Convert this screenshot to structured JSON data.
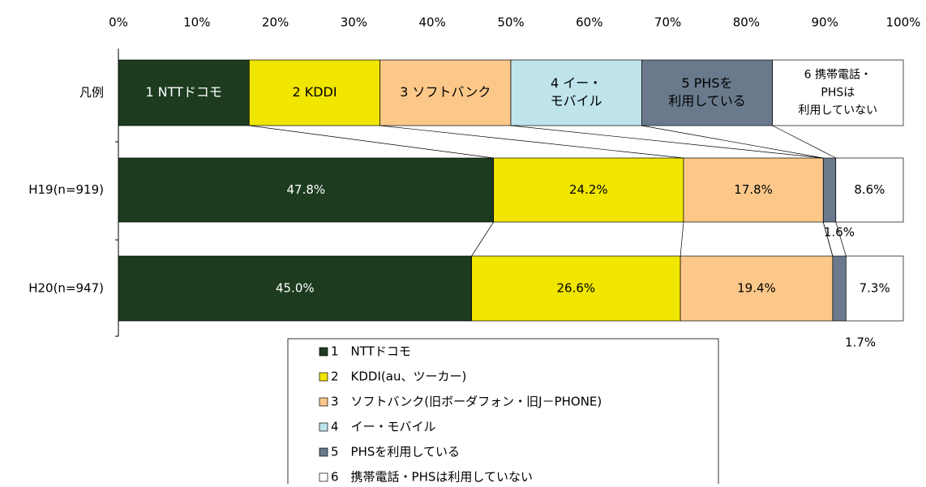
{
  "chart_data": {
    "type": "stacked_bar_horizontal",
    "categories": [
      "H19(n=919)",
      "H20(n=947)"
    ],
    "legend_row": {
      "label": "凡例",
      "segments": [
        [
          "1 NTTドコモ"
        ],
        [
          "2 KDDI"
        ],
        [
          "3 ソフトバンク"
        ],
        [
          "4 イー・",
          "モバイル"
        ],
        [
          "5 PHSを",
          "利用している"
        ],
        [
          "6 携帯電話・",
          "PHSは",
          "利用していない"
        ]
      ]
    },
    "series": [
      {
        "name": "1　NTTドコモ",
        "color": "#1c3b1f",
        "values": [
          47.8,
          45.0
        ],
        "value_labels": [
          "47.8%",
          "45.0%"
        ]
      },
      {
        "name": "2　KDDI(au、ツーカー)",
        "color": "#f0e600",
        "values": [
          24.2,
          26.6
        ],
        "value_labels": [
          "24.2%",
          "26.6%"
        ]
      },
      {
        "name": "3　ソフトバンク(旧ボーダフォン・旧J－PHONE)",
        "color": "#fcc88a",
        "values": [
          17.8,
          19.4
        ],
        "value_labels": [
          "17.8%",
          "19.4%"
        ]
      },
      {
        "name": "4　イー・モバイル",
        "color": "#bfe4ec",
        "values": [
          0,
          0
        ]
      },
      {
        "name": "5　PHSを利用している",
        "color": "#6a7a8c",
        "values": [
          1.6,
          1.7
        ],
        "value_labels": [
          "1.6%",
          "1.7%"
        ]
      },
      {
        "name": "6　携帯電話・PHSは利用していない",
        "color": "#ffffff",
        "values": [
          8.6,
          7.3
        ],
        "value_labels": [
          "8.6%",
          "7.3%"
        ]
      }
    ],
    "xlim": [
      0,
      100
    ],
    "xticks": [
      {
        "value": 0,
        "label": "0%"
      },
      {
        "value": 10,
        "label": "10%"
      },
      {
        "value": 20,
        "label": "20%"
      },
      {
        "value": 30,
        "label": "30%"
      },
      {
        "value": 40,
        "label": "40%"
      },
      {
        "value": 50,
        "label": "50%"
      },
      {
        "value": 60,
        "label": "60%"
      },
      {
        "value": 70,
        "label": "70%"
      },
      {
        "value": 80,
        "label": "80%"
      },
      {
        "value": 90,
        "label": "90%"
      },
      {
        "value": 100,
        "label": "100%"
      }
    ]
  }
}
